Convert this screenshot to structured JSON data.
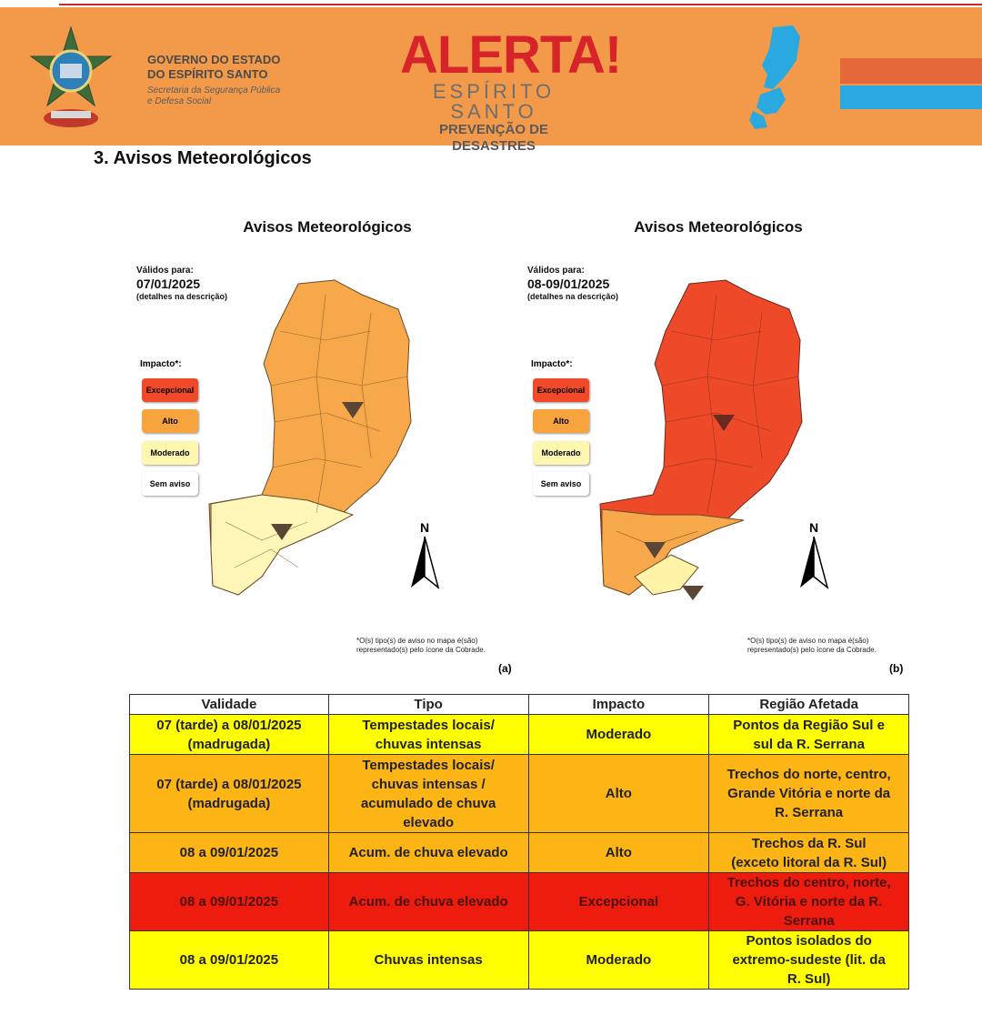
{
  "header": {
    "gov_line1": "GOVERNO DO ESTADO",
    "gov_line2": "DO ESPÍRITO SANTO",
    "sec_line1": "Secretaria da Segurança Pública",
    "sec_line2": "e Defesa Social",
    "alerta": "ALERTA!",
    "estado": "ESPÍRITO SANTO",
    "prevencao": "PREVENÇÃO DE DESASTRES",
    "colors": {
      "bar": "#f39a4a",
      "alerta": "#d7232a",
      "stripe_orange": "#e5683a",
      "stripe_blue": "#2aa9e0"
    }
  },
  "section_title": "3.  Avisos Meteorológicos",
  "panels": [
    {
      "title": "Avisos Meteorológicos",
      "validos_label": "Válidos para:",
      "date": "07/01/2025",
      "detail": "(detalhes na descrição)",
      "impacto_label": "Impacto*:",
      "footnote": "*O(s) tipo(s) de aviso no mapa é(são) representado(s) pelo ícone da Cobrade.",
      "label": "(a)",
      "north": "N"
    },
    {
      "title": "Avisos Meteorológicos",
      "validos_label": "Válidos para:",
      "date": "08-09/01/2025",
      "detail": "(detalhes na descrição)",
      "impacto_label": "Impacto*:",
      "footnote": "*O(s) tipo(s) de aviso no mapa é(são) representado(s) pelo ícone da Cobrade.",
      "label": "(b)",
      "north": "N"
    }
  ],
  "legend": [
    {
      "label": "Excepcional",
      "color": "#f04a2a"
    },
    {
      "label": "Alto",
      "color": "#f7a33e"
    },
    {
      "label": "Moderado",
      "color": "#fff6b0"
    },
    {
      "label": "Sem aviso",
      "color": "#ffffff"
    }
  ],
  "table": {
    "headers": [
      "Validade",
      "Tipo",
      "Impacto",
      "Região Afetada"
    ],
    "rows": [
      {
        "level": "mod",
        "validade": [
          "07 (tarde) a 08/01/2025",
          "(madrugada)"
        ],
        "tipo": [
          "Tempestades locais/",
          "chuvas intensas"
        ],
        "impacto": "Moderado",
        "regiao": [
          "Pontos da Região Sul e",
          "sul da R. Serrana"
        ]
      },
      {
        "level": "alto",
        "validade": [
          "07 (tarde) a 08/01/2025",
          "(madrugada)"
        ],
        "tipo": [
          "Tempestades locais/",
          "chuvas intensas /",
          "acumulado de chuva",
          "elevado"
        ],
        "impacto": "Alto",
        "regiao": [
          "Trechos do norte, centro,",
          "Grande Vitória e norte da",
          "R. Serrana"
        ]
      },
      {
        "level": "alto",
        "validade": [
          "08 a 09/01/2025"
        ],
        "tipo": [
          "Acum. de chuva elevado"
        ],
        "impacto": "Alto",
        "regiao": [
          "Trechos da R. Sul",
          "(exceto litoral da R. Sul)"
        ]
      },
      {
        "level": "exc",
        "validade": [
          "08 a 09/01/2025"
        ],
        "tipo": [
          "Acum. de chuva elevado"
        ],
        "impacto": "Excepcional",
        "regiao": [
          "Trechos do centro, norte,",
          "G. Vitória e norte da R.",
          "Serrana"
        ]
      },
      {
        "level": "mod",
        "validade": [
          "08 a 09/01/2025"
        ],
        "tipo": [
          "Chuvas intensas"
        ],
        "impacto": "Moderado",
        "regiao": [
          "Pontos isolados do",
          "extremo-sudeste (lit. da",
          "R. Sul)"
        ]
      }
    ]
  }
}
